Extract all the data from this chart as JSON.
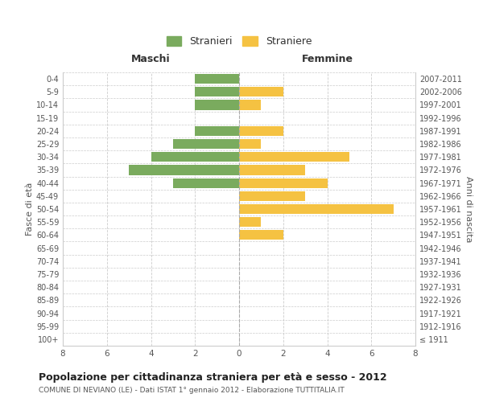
{
  "age_groups": [
    "100+",
    "95-99",
    "90-94",
    "85-89",
    "80-84",
    "75-79",
    "70-74",
    "65-69",
    "60-64",
    "55-59",
    "50-54",
    "45-49",
    "40-44",
    "35-39",
    "30-34",
    "25-29",
    "20-24",
    "15-19",
    "10-14",
    "5-9",
    "0-4"
  ],
  "birth_years": [
    "≤ 1911",
    "1912-1916",
    "1917-1921",
    "1922-1926",
    "1927-1931",
    "1932-1936",
    "1937-1941",
    "1942-1946",
    "1947-1951",
    "1952-1956",
    "1957-1961",
    "1962-1966",
    "1967-1971",
    "1972-1976",
    "1977-1981",
    "1982-1986",
    "1987-1991",
    "1992-1996",
    "1997-2001",
    "2002-2006",
    "2007-2011"
  ],
  "maschi": [
    0,
    0,
    0,
    0,
    0,
    0,
    0,
    0,
    0,
    0,
    0,
    0,
    3,
    5,
    4,
    3,
    2,
    0,
    2,
    2,
    2
  ],
  "femmine": [
    0,
    0,
    0,
    0,
    0,
    0,
    0,
    0,
    2,
    1,
    7,
    3,
    4,
    3,
    5,
    1,
    2,
    0,
    1,
    2,
    0
  ],
  "color_maschi": "#7aab5e",
  "color_femmine": "#f5c242",
  "title": "Popolazione per cittadinanza straniera per età e sesso - 2012",
  "subtitle": "COMUNE DI NEVIANO (LE) - Dati ISTAT 1° gennaio 2012 - Elaborazione TUTTITALIA.IT",
  "label_left": "Maschi",
  "label_right": "Femmine",
  "ylabel_left": "Fasce di età",
  "ylabel_right": "Anni di nascita",
  "legend_maschi": "Stranieri",
  "legend_femmine": "Straniere",
  "xlim": 8,
  "bar_height": 0.75,
  "background_color": "#ffffff",
  "grid_color": "#cccccc",
  "tick_color": "#999999",
  "text_color": "#555555"
}
